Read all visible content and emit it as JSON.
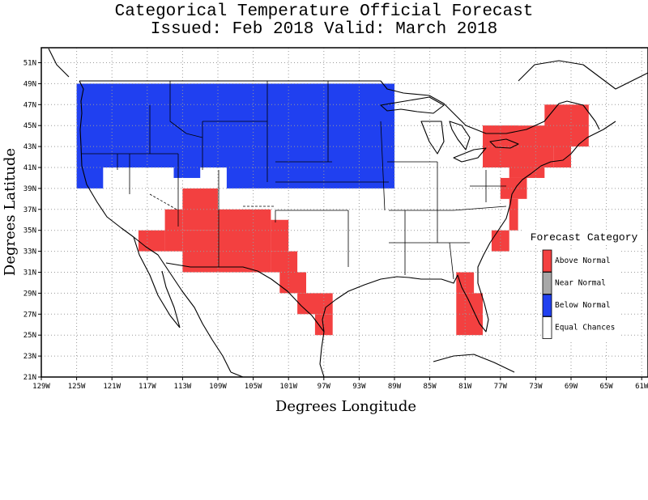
{
  "title_line1": "Categorical Temperature Official Forecast",
  "title_line2": "Issued: Feb 2018 Valid: March 2018",
  "x_axis_label": "Degrees Longitude",
  "y_axis_label": "Degrees Latitude",
  "lon_ticks": [
    "129W",
    "125W",
    "121W",
    "117W",
    "113W",
    "109W",
    "105W",
    "101W",
    "97W",
    "93W",
    "89W",
    "85W",
    "81W",
    "77W",
    "73W",
    "69W",
    "65W",
    "61W"
  ],
  "lat_ticks": [
    "21N",
    "23N",
    "25N",
    "27N",
    "29N",
    "31N",
    "33N",
    "35N",
    "37N",
    "39N",
    "41N",
    "43N",
    "45N",
    "47N",
    "49N",
    "51N"
  ],
  "legend": {
    "title": "Forecast Category",
    "items": [
      {
        "label": "Above Normal",
        "color": "#f34040"
      },
      {
        "label": "Near Normal",
        "color": "#a8a8a8"
      },
      {
        "label": "Below Normal",
        "color": "#2040f0"
      },
      {
        "label": "Equal Chances",
        "color": "#ffffff"
      }
    ]
  },
  "colors": {
    "above": "#f34040",
    "below": "#2040f0"
  },
  "categories": {
    "below_normal": [
      {
        "lon": [
          -125,
          -89
        ],
        "lat": [
          41,
          49
        ]
      },
      {
        "lon": [
          -125,
          -122
        ],
        "lat": [
          39,
          41
        ]
      },
      {
        "lon": [
          -114,
          -111
        ],
        "lat": [
          40,
          43
        ]
      },
      {
        "lon": [
          -108,
          -89
        ],
        "lat": [
          39,
          41
        ]
      }
    ],
    "above_normal": [
      {
        "lon": [
          -113,
          -109
        ],
        "lat": [
          35,
          39
        ]
      },
      {
        "lon": [
          -115,
          -113
        ],
        "lat": [
          33,
          37
        ]
      },
      {
        "lon": [
          -118,
          -115
        ],
        "lat": [
          33,
          35
        ]
      },
      {
        "lon": [
          -109,
          -103
        ],
        "lat": [
          31,
          37
        ]
      },
      {
        "lon": [
          -113,
          -109
        ],
        "lat": [
          31,
          35
        ]
      },
      {
        "lon": [
          -103,
          -101
        ],
        "lat": [
          33,
          36
        ]
      },
      {
        "lon": [
          -103,
          -100
        ],
        "lat": [
          31,
          33
        ]
      },
      {
        "lon": [
          -102,
          -99
        ],
        "lat": [
          29,
          31
        ]
      },
      {
        "lon": [
          -100,
          -96
        ],
        "lat": [
          27,
          29
        ]
      },
      {
        "lon": [
          -98,
          -96
        ],
        "lat": [
          25,
          27
        ]
      },
      {
        "lon": [
          -82,
          -80
        ],
        "lat": [
          29,
          31
        ]
      },
      {
        "lon": [
          -82,
          -79
        ],
        "lat": [
          25,
          29
        ]
      },
      {
        "lon": [
          -78,
          -76
        ],
        "lat": [
          33,
          35
        ]
      },
      {
        "lon": [
          -76,
          -75
        ],
        "lat": [
          35,
          38
        ]
      },
      {
        "lon": [
          -77,
          -74
        ],
        "lat": [
          38,
          40
        ]
      },
      {
        "lon": [
          -76,
          -72
        ],
        "lat": [
          40,
          42
        ]
      },
      {
        "lon": [
          -79,
          -71
        ],
        "lat": [
          41,
          45
        ]
      },
      {
        "lon": [
          -71,
          -69
        ],
        "lat": [
          41,
          45
        ]
      },
      {
        "lon": [
          -72,
          -67
        ],
        "lat": [
          43,
          47
        ]
      },
      {
        "lon": [
          -79,
          -75
        ],
        "lat": [
          43,
          45
        ]
      }
    ]
  }
}
